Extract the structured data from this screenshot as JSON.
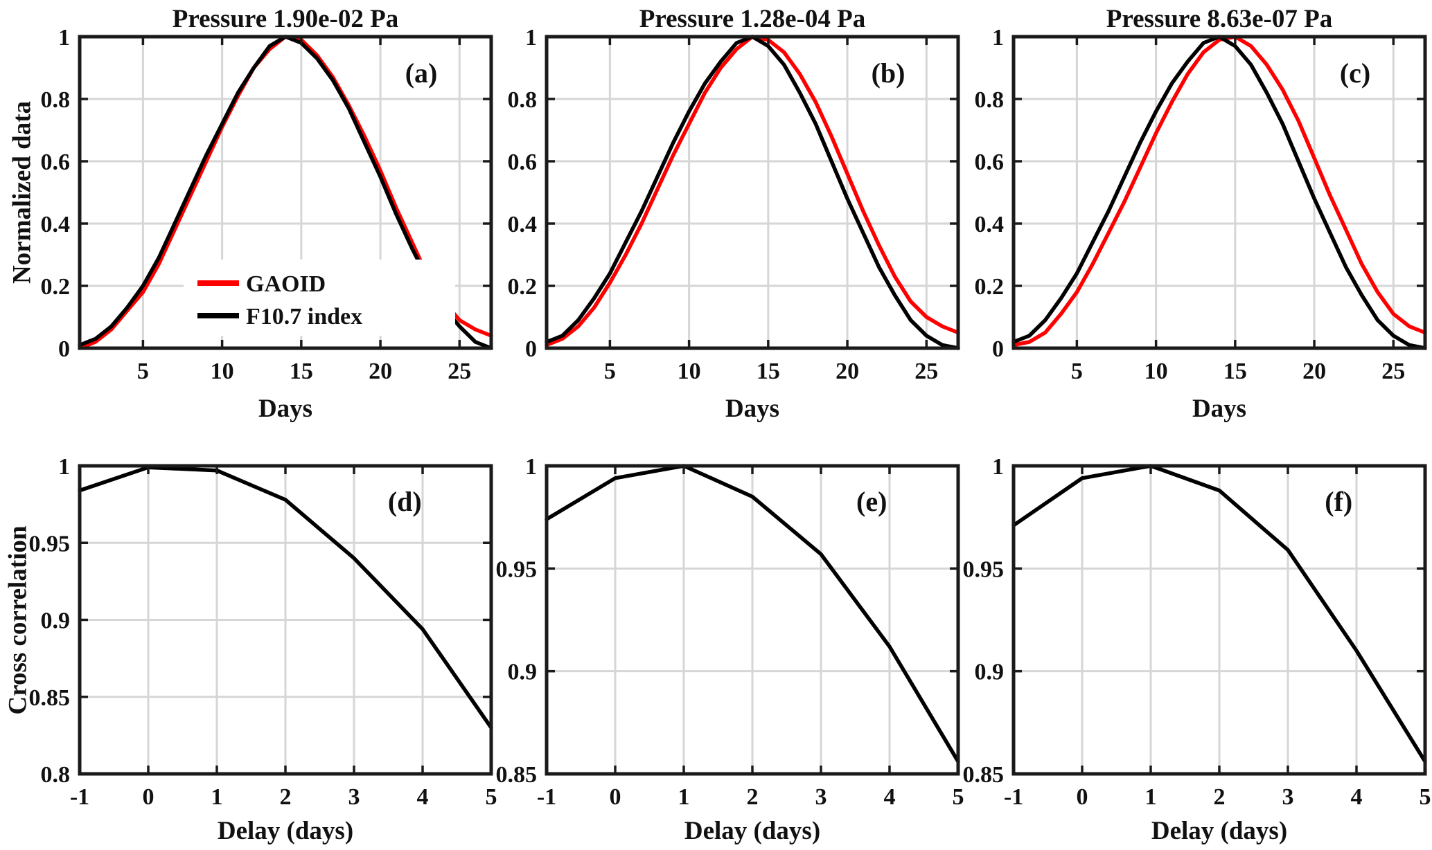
{
  "figure": {
    "background": "#ffffff",
    "frame_color": "#1a1a1a",
    "grid_color": "#d6d6d6",
    "text_color": "#111111",
    "row1_ylabel": "Normalized data",
    "row2_ylabel": "Cross correlation",
    "legend": {
      "items": [
        {
          "label": "GAOID",
          "color": "#ff0000"
        },
        {
          "label": "F10.7 index",
          "color": "#000000"
        }
      ]
    }
  },
  "chart_data": [
    {
      "id": "a",
      "type": "line",
      "panel_label": "(a)",
      "title": "Pressure 1.90e-02 Pa",
      "xlabel": "Days",
      "ylabel": "Normalized data",
      "xlim": [
        1,
        27
      ],
      "ylim": [
        0,
        1
      ],
      "xticks": [
        5,
        10,
        15,
        20,
        25
      ],
      "xtick_labels": [
        "5",
        "10",
        "15",
        "20",
        "25"
      ],
      "yticks": [
        0,
        0.2,
        0.4,
        0.6,
        0.8,
        1
      ],
      "ytick_labels": [
        "0",
        "0.2",
        "0.4",
        "0.6",
        "0.8",
        "1"
      ],
      "grid": true,
      "x": [
        1,
        2,
        3,
        4,
        5,
        6,
        7,
        8,
        9,
        10,
        11,
        12,
        13,
        14,
        15,
        16,
        17,
        18,
        19,
        20,
        21,
        22,
        23,
        24,
        25,
        26,
        27
      ],
      "series": [
        {
          "name": "GAOID",
          "color": "#ff0000",
          "y": [
            0.0,
            0.02,
            0.06,
            0.12,
            0.18,
            0.27,
            0.38,
            0.49,
            0.6,
            0.71,
            0.81,
            0.9,
            0.96,
            1.0,
            0.99,
            0.94,
            0.87,
            0.78,
            0.68,
            0.57,
            0.45,
            0.34,
            0.23,
            0.15,
            0.09,
            0.06,
            0.04
          ]
        },
        {
          "name": "F10.7 index",
          "color": "#000000",
          "y": [
            0.01,
            0.03,
            0.07,
            0.13,
            0.2,
            0.29,
            0.4,
            0.51,
            0.62,
            0.72,
            0.82,
            0.9,
            0.97,
            1.0,
            0.98,
            0.93,
            0.86,
            0.77,
            0.66,
            0.55,
            0.43,
            0.32,
            0.22,
            0.13,
            0.07,
            0.02,
            0.0
          ]
        }
      ],
      "show_legend": true
    },
    {
      "id": "b",
      "type": "line",
      "panel_label": "(b)",
      "title": "Pressure 1.28e-04 Pa",
      "xlabel": "Days",
      "xlim": [
        1,
        27
      ],
      "ylim": [
        0,
        1
      ],
      "xticks": [
        5,
        10,
        15,
        20,
        25
      ],
      "xtick_labels": [
        "5",
        "10",
        "15",
        "20",
        "25"
      ],
      "yticks": [
        0,
        0.2,
        0.4,
        0.6,
        0.8,
        1
      ],
      "ytick_labels": [
        "0",
        "0.2",
        "0.4",
        "0.6",
        "0.8",
        "1"
      ],
      "grid": true,
      "x": [
        1,
        2,
        3,
        4,
        5,
        6,
        7,
        8,
        9,
        10,
        11,
        12,
        13,
        14,
        15,
        16,
        17,
        18,
        19,
        20,
        21,
        22,
        23,
        24,
        25,
        26,
        27
      ],
      "series": [
        {
          "name": "GAOID",
          "color": "#ff0000",
          "y": [
            0.01,
            0.03,
            0.07,
            0.13,
            0.21,
            0.3,
            0.4,
            0.51,
            0.62,
            0.72,
            0.82,
            0.9,
            0.96,
            1.0,
            0.99,
            0.95,
            0.88,
            0.79,
            0.68,
            0.56,
            0.44,
            0.33,
            0.23,
            0.15,
            0.1,
            0.07,
            0.05
          ]
        },
        {
          "name": "F10.7 index",
          "color": "#000000",
          "y": [
            0.02,
            0.04,
            0.09,
            0.16,
            0.24,
            0.34,
            0.44,
            0.55,
            0.66,
            0.76,
            0.85,
            0.92,
            0.98,
            1.0,
            0.97,
            0.91,
            0.82,
            0.72,
            0.6,
            0.48,
            0.37,
            0.26,
            0.17,
            0.09,
            0.04,
            0.01,
            0.0
          ]
        }
      ],
      "show_legend": false
    },
    {
      "id": "c",
      "type": "line",
      "panel_label": "(c)",
      "title": "Pressure 8.63e-07 Pa",
      "xlabel": "Days",
      "xlim": [
        1,
        27
      ],
      "ylim": [
        0,
        1
      ],
      "xticks": [
        5,
        10,
        15,
        20,
        25
      ],
      "xtick_labels": [
        "5",
        "10",
        "15",
        "20",
        "25"
      ],
      "yticks": [
        0,
        0.2,
        0.4,
        0.6,
        0.8,
        1
      ],
      "ytick_labels": [
        "0",
        "0.2",
        "0.4",
        "0.6",
        "0.8",
        "1"
      ],
      "grid": true,
      "x": [
        1,
        2,
        3,
        4,
        5,
        6,
        7,
        8,
        9,
        10,
        11,
        12,
        13,
        14,
        15,
        16,
        17,
        18,
        19,
        20,
        21,
        22,
        23,
        24,
        25,
        26,
        27
      ],
      "series": [
        {
          "name": "GAOID",
          "color": "#ff0000",
          "y": [
            0.01,
            0.02,
            0.05,
            0.11,
            0.18,
            0.27,
            0.37,
            0.47,
            0.58,
            0.69,
            0.79,
            0.88,
            0.95,
            0.99,
            1.0,
            0.97,
            0.91,
            0.83,
            0.73,
            0.61,
            0.49,
            0.38,
            0.27,
            0.18,
            0.11,
            0.07,
            0.05
          ]
        },
        {
          "name": "F10.7 index",
          "color": "#000000",
          "y": [
            0.02,
            0.04,
            0.09,
            0.16,
            0.24,
            0.34,
            0.44,
            0.55,
            0.66,
            0.76,
            0.85,
            0.92,
            0.98,
            1.0,
            0.97,
            0.91,
            0.82,
            0.72,
            0.6,
            0.48,
            0.37,
            0.26,
            0.17,
            0.09,
            0.04,
            0.01,
            0.0
          ]
        }
      ],
      "show_legend": false
    },
    {
      "id": "d",
      "type": "line",
      "panel_label": "(d)",
      "xlabel": "Delay (days)",
      "ylabel": "Cross correlation",
      "xlim": [
        -1,
        5
      ],
      "ylim": [
        0.8,
        1
      ],
      "xticks": [
        -1,
        0,
        1,
        2,
        3,
        4,
        5
      ],
      "xtick_labels": [
        "-1",
        "0",
        "1",
        "2",
        "3",
        "4",
        "5"
      ],
      "yticks": [
        0.8,
        0.85,
        0.9,
        0.95,
        1
      ],
      "ytick_labels": [
        "0.8",
        "0.85",
        "0.9",
        "0.95",
        "1"
      ],
      "grid": true,
      "x": [
        -1,
        0,
        1,
        2,
        3,
        4,
        5
      ],
      "series": [
        {
          "name": "Cross correlation",
          "color": "#000000",
          "y": [
            0.984,
            0.999,
            0.997,
            0.978,
            0.94,
            0.894,
            0.83
          ]
        }
      ],
      "show_legend": false
    },
    {
      "id": "e",
      "type": "line",
      "panel_label": "(e)",
      "xlabel": "Delay (days)",
      "xlim": [
        -1,
        5
      ],
      "ylim": [
        0.85,
        1
      ],
      "xticks": [
        -1,
        0,
        1,
        2,
        3,
        4,
        5
      ],
      "xtick_labels": [
        "-1",
        "0",
        "1",
        "2",
        "3",
        "4",
        "5"
      ],
      "yticks": [
        0.85,
        0.9,
        0.95,
        1
      ],
      "ytick_labels": [
        "0.85",
        "0.9",
        "0.95",
        "1"
      ],
      "grid": true,
      "x": [
        -1,
        0,
        1,
        2,
        3,
        4,
        5
      ],
      "series": [
        {
          "name": "Cross correlation",
          "color": "#000000",
          "y": [
            0.974,
            0.994,
            1.0,
            0.985,
            0.957,
            0.912,
            0.856
          ]
        }
      ],
      "show_legend": false
    },
    {
      "id": "f",
      "type": "line",
      "panel_label": "(f)",
      "xlabel": "Delay (days)",
      "xlim": [
        -1,
        5
      ],
      "ylim": [
        0.85,
        1
      ],
      "xticks": [
        -1,
        0,
        1,
        2,
        3,
        4,
        5
      ],
      "xtick_labels": [
        "-1",
        "0",
        "1",
        "2",
        "3",
        "4",
        "5"
      ],
      "yticks": [
        0.85,
        0.9,
        0.95,
        1
      ],
      "ytick_labels": [
        "0.85",
        "0.9",
        "0.95",
        "1"
      ],
      "grid": true,
      "x": [
        -1,
        0,
        1,
        2,
        3,
        4,
        5
      ],
      "series": [
        {
          "name": "Cross correlation",
          "color": "#000000",
          "y": [
            0.971,
            0.994,
            1.0,
            0.988,
            0.959,
            0.91,
            0.856
          ]
        }
      ],
      "show_legend": false
    }
  ]
}
